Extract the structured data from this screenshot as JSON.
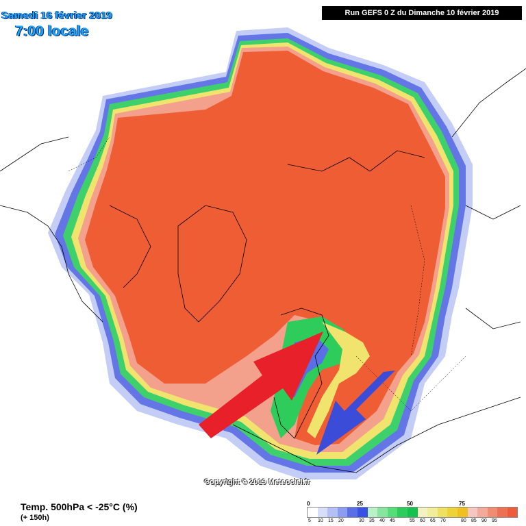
{
  "header": {
    "date": "Samedi 16 février 2019",
    "time": "7:00 locale",
    "run": "Run GEFS 0 Z du Dimanche 10 février 2019"
  },
  "footer": {
    "parameter": "Temp. 500hPa < -25°C (%)",
    "lead_time": "(+ 150h)",
    "copyright": "Copyright © 2019 Meteociel.fr"
  },
  "legend": {
    "major_marks": [
      "0",
      "25",
      "50",
      "75"
    ],
    "tick_labels": [
      "5",
      "10",
      "15",
      "20",
      "30",
      "35",
      "40",
      "45",
      "55",
      "60",
      "65",
      "70",
      "80",
      "85",
      "90",
      "95"
    ],
    "colors": [
      "#ffffff",
      "#d9def8",
      "#b4bff5",
      "#8c9cf0",
      "#5a6ee8",
      "#3a50e0",
      "#b8f0c8",
      "#86e6a0",
      "#56dc78",
      "#2ecc5a",
      "#18c050",
      "#f2f2c4",
      "#f0ee9a",
      "#eee060",
      "#eed23a",
      "#eec020",
      "#f4c8c0",
      "#f2aa9a",
      "#f08c74",
      "#ee7052",
      "#ee5c3e"
    ]
  },
  "map": {
    "title_color": "#1aa7ff",
    "core_color": "#ef5d35",
    "arrows": [
      {
        "label": "red-arrow",
        "color": "#e8202a"
      },
      {
        "label": "blue-arrow",
        "color": "#3a4cd8"
      }
    ]
  }
}
